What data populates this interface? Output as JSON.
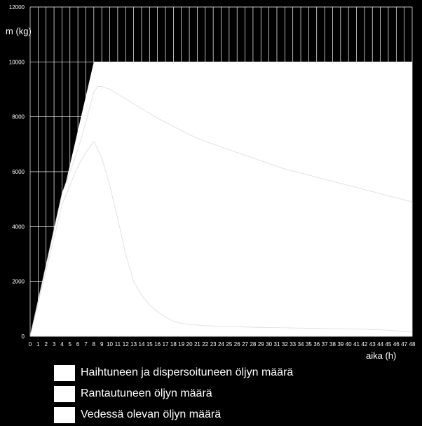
{
  "chart_data": {
    "type": "area",
    "ylabel": "m (kg)",
    "xlabel": "aika (h)",
    "ylim": [
      0,
      12000
    ],
    "xlim": [
      0,
      48
    ],
    "yticks": [
      0,
      2000,
      4000,
      6000,
      8000,
      10000,
      12000
    ],
    "xticks": [
      0,
      1,
      2,
      3,
      4,
      5,
      6,
      7,
      8,
      9,
      10,
      11,
      12,
      13,
      14,
      15,
      16,
      17,
      18,
      19,
      20,
      21,
      22,
      23,
      24,
      25,
      26,
      27,
      28,
      29,
      30,
      31,
      32,
      33,
      34,
      35,
      36,
      37,
      38,
      39,
      40,
      41,
      42,
      43,
      44,
      45,
      46,
      47,
      48
    ],
    "grid": true,
    "legend_position": "bottom-left",
    "series": [
      {
        "name": "Haihtuneen ja dispersoituneen öljyn määrä",
        "color": "#ffffff",
        "x": [
          0,
          8,
          48
        ],
        "values": [
          0,
          10000,
          10000
        ]
      },
      {
        "name": "Rantautuneen öljyn määrä",
        "color": "#ffffff",
        "x": [
          0,
          4,
          6,
          7,
          8,
          8.5,
          9,
          10,
          12,
          14,
          16,
          18,
          20,
          22,
          24,
          26,
          28,
          30,
          32,
          34,
          36,
          38,
          40,
          42,
          44,
          46,
          48
        ],
        "values": [
          0,
          5200,
          6800,
          7800,
          8900,
          9100,
          9100,
          9000,
          8650,
          8300,
          7950,
          7650,
          7350,
          7100,
          6900,
          6700,
          6500,
          6300,
          6100,
          5950,
          5800,
          5650,
          5500,
          5350,
          5200,
          5050,
          4900
        ]
      },
      {
        "name": "Vedessä olevan öljyn määrä",
        "color": "#ffffff",
        "x": [
          0,
          4,
          6,
          7,
          8,
          9,
          10,
          11,
          12,
          13,
          14,
          15,
          16,
          17,
          18,
          19,
          20,
          22,
          24,
          26,
          28,
          30,
          32,
          34,
          36,
          38,
          40,
          42,
          44,
          46,
          48
        ],
        "values": [
          0,
          4800,
          6200,
          6700,
          7100,
          6500,
          5500,
          4300,
          3000,
          2000,
          1500,
          1150,
          900,
          700,
          550,
          470,
          430,
          390,
          370,
          350,
          330,
          320,
          310,
          300,
          290,
          280,
          270,
          260,
          240,
          200,
          150
        ]
      }
    ]
  }
}
